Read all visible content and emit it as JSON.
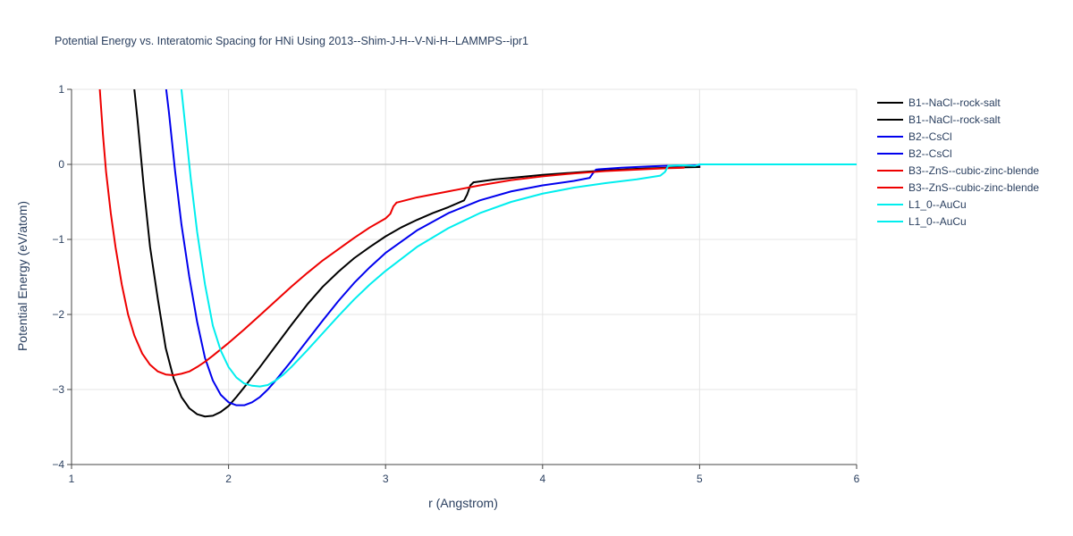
{
  "chart_data": {
    "type": "line",
    "title": "Potential Energy vs. Interatomic Spacing for HNi Using 2013--Shim-J-H--V-Ni-H--LAMMPS--ipr1",
    "xlabel": "r (Angstrom)",
    "ylabel": "Potential Energy (eV/atom)",
    "xlim": [
      1,
      6
    ],
    "ylim": [
      -4,
      1
    ],
    "xticks": [
      1,
      2,
      3,
      4,
      5,
      6
    ],
    "yticks": [
      -4,
      -3,
      -2,
      -1,
      0,
      1
    ],
    "xtick_labels": [
      "1",
      "2",
      "3",
      "4",
      "5",
      "6"
    ],
    "ytick_labels": [
      "−4",
      "−3",
      "−2",
      "−1",
      "0",
      "1"
    ],
    "grid": true,
    "legend_position": "right",
    "series": [
      {
        "name": "B1--NaCl--rock-salt",
        "color": "#000000",
        "x": [
          1.38,
          1.42,
          1.46,
          1.5,
          1.55,
          1.6,
          1.65,
          1.7,
          1.75,
          1.8,
          1.85,
          1.9,
          1.95,
          2.0,
          2.05,
          2.1,
          2.2,
          2.3,
          2.4,
          2.5,
          2.6,
          2.7,
          2.8,
          2.9,
          3.0,
          3.1,
          3.2,
          3.3,
          3.4,
          3.5,
          3.52,
          3.54,
          3.56
        ],
        "y": [
          1.4,
          0.6,
          -0.3,
          -1.1,
          -1.8,
          -2.45,
          -2.85,
          -3.1,
          -3.25,
          -3.33,
          -3.36,
          -3.35,
          -3.3,
          -3.22,
          -3.1,
          -2.97,
          -2.7,
          -2.42,
          -2.14,
          -1.87,
          -1.63,
          -1.43,
          -1.25,
          -1.1,
          -0.96,
          -0.84,
          -0.74,
          -0.65,
          -0.57,
          -0.48,
          -0.4,
          -0.28,
          -0.24
        ]
      },
      {
        "name": "B1--NaCl--rock-salt",
        "color": "#000000",
        "x": [
          3.56,
          3.7,
          3.8,
          4.0,
          4.2,
          4.4,
          4.6,
          4.8,
          5.0
        ],
        "y": [
          -0.24,
          -0.2,
          -0.18,
          -0.14,
          -0.11,
          -0.08,
          -0.06,
          -0.045,
          -0.035
        ]
      },
      {
        "name": "B2--CsCl",
        "color": "#0000ee",
        "x": [
          1.58,
          1.62,
          1.66,
          1.7,
          1.75,
          1.8,
          1.85,
          1.9,
          1.95,
          2.0,
          2.05,
          2.1,
          2.15,
          2.2,
          2.25,
          2.3,
          2.4,
          2.5,
          2.6,
          2.7,
          2.8,
          2.9,
          3.0,
          3.2,
          3.4,
          3.6,
          3.8,
          4.0,
          4.2,
          4.3,
          4.32,
          4.34,
          4.36
        ],
        "y": [
          1.4,
          0.7,
          -0.1,
          -0.8,
          -1.5,
          -2.1,
          -2.58,
          -2.88,
          -3.07,
          -3.17,
          -3.21,
          -3.21,
          -3.17,
          -3.1,
          -3.0,
          -2.88,
          -2.62,
          -2.35,
          -2.08,
          -1.82,
          -1.58,
          -1.37,
          -1.18,
          -0.88,
          -0.65,
          -0.48,
          -0.36,
          -0.28,
          -0.22,
          -0.18,
          -0.12,
          -0.07,
          -0.065
        ]
      },
      {
        "name": "B2--CsCl",
        "color": "#0000ee",
        "x": [
          4.36,
          4.5,
          4.7,
          4.8,
          4.9,
          5.0
        ],
        "y": [
          -0.065,
          -0.045,
          -0.025,
          -0.018,
          -0.012,
          -0.01
        ]
      },
      {
        "name": "B3--ZnS--cubic-zinc-blende",
        "color": "#ee0000",
        "x": [
          1.18,
          1.2,
          1.22,
          1.25,
          1.28,
          1.32,
          1.36,
          1.4,
          1.45,
          1.5,
          1.55,
          1.6,
          1.65,
          1.7,
          1.75,
          1.8,
          1.85,
          1.9,
          2.0,
          2.1,
          2.2,
          2.3,
          2.4,
          2.5,
          2.6,
          2.7,
          2.8,
          2.9,
          3.0,
          3.03,
          3.05,
          3.07
        ],
        "y": [
          1.0,
          0.4,
          -0.1,
          -0.65,
          -1.1,
          -1.6,
          -2.0,
          -2.28,
          -2.52,
          -2.67,
          -2.76,
          -2.8,
          -2.81,
          -2.79,
          -2.76,
          -2.7,
          -2.63,
          -2.55,
          -2.38,
          -2.2,
          -2.01,
          -1.82,
          -1.63,
          -1.45,
          -1.28,
          -1.13,
          -0.98,
          -0.84,
          -0.72,
          -0.66,
          -0.56,
          -0.51
        ]
      },
      {
        "name": "B3--ZnS--cubic-zinc-blende",
        "color": "#ee0000",
        "x": [
          3.07,
          3.2,
          3.4,
          3.6,
          3.8,
          4.0,
          4.2,
          4.4,
          4.6,
          4.8,
          4.9
        ],
        "y": [
          -0.51,
          -0.44,
          -0.36,
          -0.28,
          -0.21,
          -0.16,
          -0.12,
          -0.09,
          -0.07,
          -0.05,
          -0.045
        ]
      },
      {
        "name": "L1_0--AuCu",
        "color": "#00eeee",
        "x": [
          1.68,
          1.72,
          1.76,
          1.8,
          1.85,
          1.9,
          1.95,
          2.0,
          2.05,
          2.1,
          2.15,
          2.2,
          2.25,
          2.3,
          2.35,
          2.4,
          2.5,
          2.6,
          2.7,
          2.8,
          2.9,
          3.0,
          3.2,
          3.4,
          3.6,
          3.8,
          4.0,
          4.2,
          4.4,
          4.6,
          4.75,
          4.78,
          4.8
        ],
        "y": [
          1.4,
          0.6,
          -0.2,
          -0.9,
          -1.6,
          -2.15,
          -2.48,
          -2.7,
          -2.84,
          -2.92,
          -2.95,
          -2.96,
          -2.94,
          -2.88,
          -2.8,
          -2.7,
          -2.48,
          -2.25,
          -2.02,
          -1.8,
          -1.6,
          -1.42,
          -1.1,
          -0.85,
          -0.65,
          -0.5,
          -0.39,
          -0.31,
          -0.25,
          -0.2,
          -0.15,
          -0.1,
          -0.02
        ]
      },
      {
        "name": "L1_0--AuCu",
        "color": "#00eeee",
        "x": [
          4.8,
          4.9,
          4.97,
          5.0,
          5.5,
          6.0
        ],
        "y": [
          -0.02,
          -0.01,
          -0.02,
          0.0,
          0.0,
          0.0
        ]
      }
    ]
  }
}
